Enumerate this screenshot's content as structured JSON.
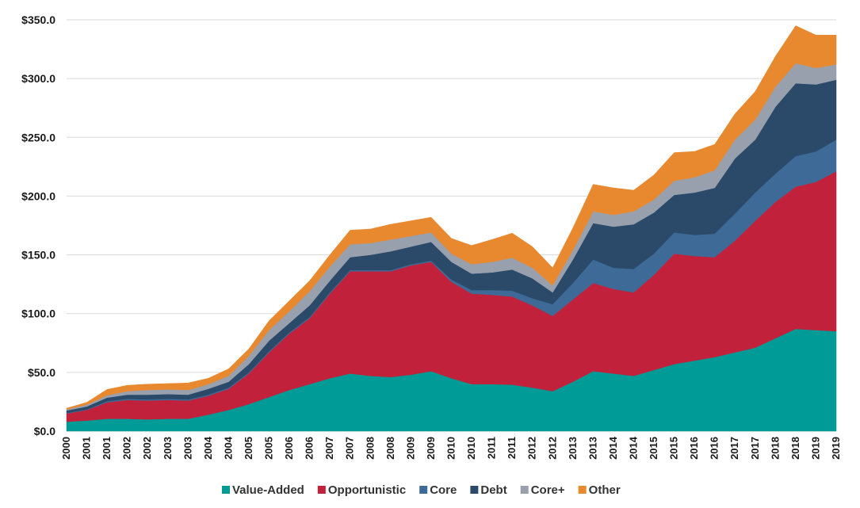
{
  "chart_data": {
    "type": "area",
    "stacked": true,
    "x": [
      "2000",
      "2001",
      "2001",
      "2002",
      "2002",
      "2003",
      "2003",
      "2004",
      "2004",
      "2005",
      "2005",
      "2006",
      "2006",
      "2007",
      "2007",
      "2008",
      "2008",
      "2009",
      "2009",
      "2010",
      "2010",
      "2011",
      "2011",
      "2012",
      "2012",
      "2013",
      "2013",
      "2014",
      "2014",
      "2015",
      "2015",
      "2016",
      "2016",
      "2017",
      "2017",
      "2018",
      "2018",
      "2019",
      "2019"
    ],
    "series": [
      {
        "name": "Value-Added",
        "color": "#009b96",
        "values": [
          8,
          9,
          10.5,
          10.5,
          10,
          10.5,
          10.5,
          14,
          18,
          23,
          29,
          35,
          40,
          45,
          49,
          47,
          46,
          48,
          51,
          45,
          40,
          40,
          39.5,
          37,
          34,
          42,
          51,
          49,
          47,
          52,
          57,
          60,
          63,
          67,
          71,
          79,
          87,
          86,
          85
        ]
      },
      {
        "name": "Opportunistic",
        "color": "#c1213a",
        "values": [
          7,
          9,
          14,
          16,
          16,
          16,
          15.5,
          16,
          18,
          26,
          38,
          48,
          56,
          72,
          87,
          89,
          90,
          93,
          93,
          82,
          77,
          76,
          75,
          70,
          64,
          70,
          75,
          72,
          71,
          81,
          94,
          89,
          85,
          95,
          108,
          116,
          121,
          126,
          136
        ]
      },
      {
        "name": "Core",
        "color": "#3e6a97",
        "values": [
          0.5,
          0.5,
          1,
          1,
          1,
          1,
          1,
          1,
          1,
          1,
          1,
          1,
          1,
          1,
          1,
          1,
          1,
          1,
          1,
          2,
          3,
          4,
          5,
          6,
          10,
          14,
          20,
          18,
          20,
          18,
          18,
          18,
          20,
          23,
          24,
          24,
          26,
          26,
          27
        ]
      },
      {
        "name": "Debt",
        "color": "#2b4a6a",
        "values": [
          2,
          2.5,
          3,
          3.5,
          4,
          4,
          4,
          5,
          5,
          7,
          9,
          8,
          10,
          10,
          11,
          13,
          16,
          15,
          16,
          15,
          14,
          15,
          18,
          17,
          10,
          20,
          31,
          35,
          38,
          35,
          32,
          36,
          39,
          47,
          45,
          57,
          62,
          57,
          51
        ]
      },
      {
        "name": "Core+",
        "color": "#98a0ae",
        "values": [
          1,
          1.5,
          2,
          3,
          4,
          4,
          4,
          4,
          5,
          7,
          9,
          10,
          12,
          12,
          11,
          10,
          10,
          9,
          8,
          7,
          8,
          9,
          10,
          9,
          6,
          8,
          10,
          10,
          11,
          11,
          12,
          13,
          15,
          16,
          17,
          17,
          17,
          14,
          13
        ]
      },
      {
        "name": "Other",
        "color": "#e8892f",
        "values": [
          1,
          2,
          5,
          5,
          5,
          5,
          6,
          5,
          6,
          6,
          8,
          9,
          9,
          10,
          12,
          12,
          13,
          13,
          13,
          13,
          16,
          19,
          21,
          18,
          15,
          19,
          23,
          23,
          18,
          21,
          24,
          22,
          22,
          22,
          24,
          26,
          32,
          28,
          25
        ]
      }
    ],
    "ylim": [
      0,
      350
    ],
    "yticks": [
      "$0.0",
      "$50.0",
      "$100.0",
      "$150.0",
      "$200.0",
      "$250.0",
      "$300.0",
      "$350.0"
    ],
    "ytick_values": [
      0,
      50,
      100,
      150,
      200,
      250,
      300,
      350
    ],
    "grid": "horizontal",
    "legend_position": "bottom",
    "title": "",
    "xlabel": "",
    "ylabel": ""
  }
}
